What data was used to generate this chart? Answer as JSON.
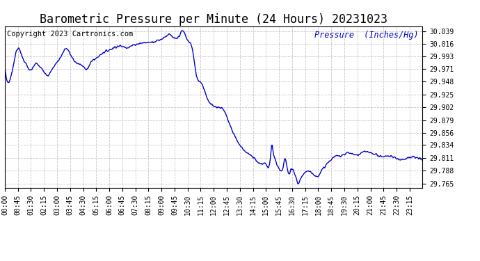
{
  "title": "Barometric Pressure per Minute (24 Hours) 20231023",
  "copyright_text": "Copyright 2023 Cartronics.com",
  "ylabel": "Pressure  (Inches/Hg)",
  "background_color": "#ffffff",
  "line_color": "#0000cc",
  "grid_color": "#c8c8c8",
  "title_color": "#000000",
  "copyright_color": "#000000",
  "ylabel_color": "#0000cc",
  "ylim": [
    29.757,
    30.048
  ],
  "yticks": [
    29.765,
    29.788,
    29.811,
    29.834,
    29.856,
    29.879,
    29.902,
    29.925,
    29.948,
    29.971,
    29.993,
    30.016,
    30.039
  ],
  "xtick_labels": [
    "00:00",
    "00:45",
    "01:30",
    "02:15",
    "03:00",
    "03:45",
    "04:30",
    "05:15",
    "06:00",
    "06:45",
    "07:30",
    "08:15",
    "09:00",
    "09:45",
    "10:30",
    "11:15",
    "12:00",
    "12:45",
    "13:30",
    "14:15",
    "15:00",
    "15:45",
    "16:30",
    "17:15",
    "18:00",
    "18:45",
    "19:30",
    "20:15",
    "21:00",
    "21:45",
    "22:30",
    "23:15"
  ],
  "title_fontsize": 12,
  "tick_fontsize": 7,
  "copyright_fontsize": 7.5,
  "ylabel_fontsize": 8.5,
  "linewidth": 1.0,
  "pressure_keypoints": [
    [
      0,
      29.975
    ],
    [
      30,
      29.98
    ],
    [
      45,
      30.008
    ],
    [
      60,
      29.993
    ],
    [
      75,
      29.978
    ],
    [
      90,
      29.968
    ],
    [
      105,
      29.98
    ],
    [
      120,
      29.975
    ],
    [
      135,
      29.967
    ],
    [
      150,
      29.96
    ],
    [
      165,
      29.972
    ],
    [
      180,
      29.983
    ],
    [
      195,
      29.995
    ],
    [
      210,
      30.008
    ],
    [
      225,
      29.998
    ],
    [
      240,
      29.985
    ],
    [
      255,
      29.98
    ],
    [
      270,
      29.975
    ],
    [
      285,
      29.972
    ],
    [
      300,
      29.985
    ],
    [
      315,
      29.99
    ],
    [
      330,
      29.997
    ],
    [
      345,
      30.002
    ],
    [
      360,
      30.005
    ],
    [
      390,
      30.012
    ],
    [
      420,
      30.01
    ],
    [
      450,
      30.015
    ],
    [
      480,
      30.018
    ],
    [
      510,
      30.02
    ],
    [
      540,
      30.025
    ],
    [
      555,
      30.03
    ],
    [
      570,
      30.032
    ],
    [
      585,
      30.025
    ],
    [
      600,
      30.03
    ],
    [
      615,
      30.039
    ],
    [
      630,
      30.022
    ],
    [
      645,
      30.01
    ],
    [
      660,
      29.96
    ],
    [
      675,
      29.948
    ],
    [
      690,
      29.93
    ],
    [
      705,
      29.91
    ],
    [
      720,
      29.905
    ],
    [
      735,
      29.902
    ],
    [
      750,
      29.9
    ],
    [
      765,
      29.885
    ],
    [
      780,
      29.865
    ],
    [
      795,
      29.848
    ],
    [
      810,
      29.834
    ],
    [
      825,
      29.825
    ],
    [
      840,
      29.818
    ],
    [
      855,
      29.812
    ],
    [
      870,
      29.805
    ],
    [
      885,
      29.8
    ],
    [
      900,
      29.8
    ],
    [
      915,
      29.81
    ],
    [
      920,
      29.835
    ],
    [
      925,
      29.82
    ],
    [
      930,
      29.811
    ],
    [
      940,
      29.795
    ],
    [
      950,
      29.788
    ],
    [
      960,
      29.795
    ],
    [
      965,
      29.81
    ],
    [
      970,
      29.802
    ],
    [
      975,
      29.788
    ],
    [
      980,
      29.78
    ],
    [
      985,
      29.788
    ],
    [
      990,
      29.79
    ],
    [
      995,
      29.788
    ],
    [
      1000,
      29.78
    ],
    [
      1005,
      29.773
    ],
    [
      1010,
      29.765
    ],
    [
      1020,
      29.775
    ],
    [
      1030,
      29.78
    ],
    [
      1040,
      29.788
    ],
    [
      1050,
      29.788
    ],
    [
      1060,
      29.783
    ],
    [
      1070,
      29.778
    ],
    [
      1080,
      29.78
    ],
    [
      1095,
      29.79
    ],
    [
      1110,
      29.8
    ],
    [
      1125,
      29.808
    ],
    [
      1140,
      29.814
    ],
    [
      1155,
      29.815
    ],
    [
      1170,
      29.818
    ],
    [
      1185,
      29.82
    ],
    [
      1200,
      29.818
    ],
    [
      1215,
      29.816
    ],
    [
      1230,
      29.82
    ],
    [
      1245,
      29.822
    ],
    [
      1260,
      29.82
    ],
    [
      1275,
      29.818
    ],
    [
      1290,
      29.815
    ],
    [
      1305,
      29.813
    ],
    [
      1320,
      29.815
    ],
    [
      1335,
      29.813
    ],
    [
      1350,
      29.81
    ],
    [
      1365,
      29.808
    ],
    [
      1380,
      29.81
    ],
    [
      1395,
      29.812
    ],
    [
      1410,
      29.812
    ],
    [
      1425,
      29.81
    ],
    [
      1439,
      29.808
    ]
  ]
}
